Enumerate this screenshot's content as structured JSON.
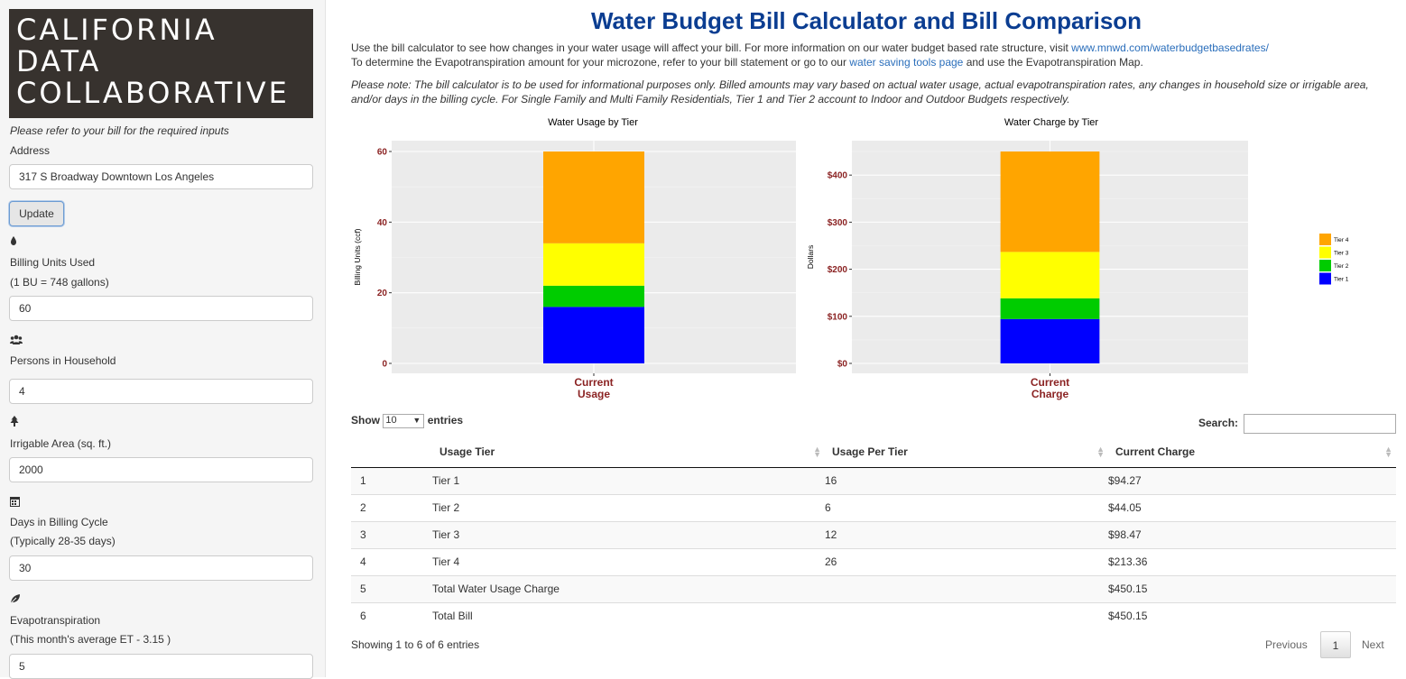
{
  "sidebar": {
    "logo_lines": [
      "CALIFORNIA",
      "DATA",
      "COLLABORATIVE"
    ],
    "note": "Please refer to your bill for the required inputs",
    "address_label": "Address",
    "address_value": "317 S Broadway Downtown Los Angeles",
    "update_label": "Update",
    "billing_units_label": "Billing Units Used",
    "billing_units_sub": "(1 BU = 748 gallons)",
    "billing_units_value": "60",
    "persons_label": "Persons in Household",
    "persons_value": "4",
    "irrigable_label": "Irrigable Area (sq. ft.)",
    "irrigable_value": "2000",
    "days_label": "Days in Billing Cycle",
    "days_sub": "(Typically 28-35 days)",
    "days_value": "30",
    "et_label": "Evapotranspiration",
    "et_sub": "(This month's average ET - 3.15 )",
    "et_value": "5",
    "icons": [
      "water-drop-icon",
      "users-icon",
      "tree-icon",
      "calendar-icon",
      "leaf-icon"
    ]
  },
  "main": {
    "title": "Water Budget Bill Calculator and Bill Comparison",
    "intro_line1": "Use the bill calculator to see how changes in your water usage will affect your bill. For more information on our water budget based rate structure, visit ",
    "intro_link1": "www.mnwd.com/waterbudgetbasedrates/",
    "intro_line2_a": "To determine the Evapotranspiration amount for your microzone, refer to your bill statement or go to our ",
    "intro_link2": "water saving tools page",
    "intro_line2_b": " and use the Evapotranspiration Map.",
    "note": "Please note: The bill calculator is to be used for informational purposes only. Billed amounts may vary based on actual water usage, actual evapotranspiration rates, any changes in household size or irrigable area, and/or days in the billing cycle. For Single Family and Multi Family Residentials, Tier 1 and Tier 2 account to Indoor and Outdoor Budgets respectively."
  },
  "table": {
    "show_label": "Show",
    "length_value": "10",
    "entries_label": "entries",
    "search_label": "Search:",
    "columns": [
      "",
      "Usage Tier",
      "Usage Per Tier",
      "Current Charge"
    ],
    "rows": [
      [
        "1",
        "Tier 1",
        "16",
        "$94.27"
      ],
      [
        "2",
        "Tier 2",
        "6",
        "$44.05"
      ],
      [
        "3",
        "Tier 3",
        "12",
        "$98.47"
      ],
      [
        "4",
        "Tier 4",
        "26",
        "$213.36"
      ],
      [
        "5",
        "Total Water Usage Charge",
        "",
        "$450.15"
      ],
      [
        "6",
        "Total Bill",
        "",
        "$450.15"
      ]
    ],
    "info": "Showing 1 to 6 of 6 entries",
    "prev_label": "Previous",
    "current_page": "1",
    "next_label": "Next"
  },
  "chart_data": [
    {
      "type": "bar",
      "stacked": true,
      "title": "Water Usage by Tier",
      "ylabel": "Billing Units (ccf)",
      "xlabel": "",
      "categories": [
        "Current Usage"
      ],
      "ylim": [
        0,
        60
      ],
      "yticks": [
        0,
        20,
        40,
        60
      ],
      "ytick_labels": [
        "0",
        "20",
        "40",
        "60"
      ],
      "series": [
        {
          "name": "Tier 1",
          "values": [
            16
          ],
          "color": "#0000ff"
        },
        {
          "name": "Tier 2",
          "values": [
            6
          ],
          "color": "#00cc00"
        },
        {
          "name": "Tier 3",
          "values": [
            12
          ],
          "color": "#ffff00"
        },
        {
          "name": "Tier 4",
          "values": [
            26
          ],
          "color": "#ffa500"
        }
      ]
    },
    {
      "type": "bar",
      "stacked": true,
      "title": "Water Charge by Tier",
      "ylabel": "Dollars",
      "xlabel": "",
      "categories": [
        "Current Charge"
      ],
      "ylim": [
        0,
        450.15
      ],
      "yticks": [
        0,
        100,
        200,
        300,
        400
      ],
      "ytick_labels": [
        "$0",
        "$100",
        "$200",
        "$300",
        "$400"
      ],
      "series": [
        {
          "name": "Tier 1",
          "values": [
            94.27
          ],
          "color": "#0000ff"
        },
        {
          "name": "Tier 2",
          "values": [
            44.05
          ],
          "color": "#00cc00"
        },
        {
          "name": "Tier 3",
          "values": [
            98.47
          ],
          "color": "#ffff00"
        },
        {
          "name": "Tier 4",
          "values": [
            213.36
          ],
          "color": "#ffa500"
        }
      ]
    }
  ],
  "legend": {
    "entries": [
      "Tier 4",
      "Tier 3",
      "Tier 2",
      "Tier 1"
    ],
    "colors": [
      "#ffa500",
      "#ffff00",
      "#00cc00",
      "#0000ff"
    ]
  },
  "colors": {
    "tick_label": "#8b2323",
    "panel_bg": "#ebebeb",
    "title_blue": "#0b3d91",
    "link": "#2a6ebb"
  }
}
